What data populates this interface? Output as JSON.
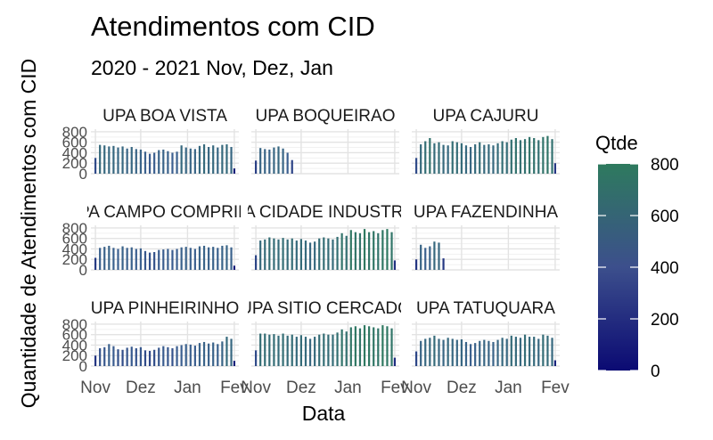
{
  "chart_data": {
    "type": "bar",
    "title": "Atendimentos com CID",
    "subtitle": "2020 - 2021 Nov, Dez, Jan",
    "xlabel": "Data",
    "ylabel": "Quantidade de Atendimentos com CID",
    "y_ticks": [
      "0",
      "200",
      "400",
      "600",
      "800"
    ],
    "ylim": [
      0,
      850
    ],
    "x_ticks": [
      "Nov",
      "Dez",
      "Jan",
      "Fev"
    ],
    "xlim": [
      "2020-10-29",
      "2021-02-04"
    ],
    "legend": {
      "title": "Qtde",
      "position": "right",
      "ticks": [
        "0",
        "200",
        "400",
        "600",
        "800"
      ],
      "range": [
        0,
        800
      ],
      "colors": {
        "low": "#0b0a73",
        "mid": "#3c6090",
        "high": "#2e7a5e"
      }
    },
    "grid": true,
    "dates": [
      "2020-11-01",
      "2020-11-04",
      "2020-11-07",
      "2020-11-10",
      "2020-11-13",
      "2020-11-16",
      "2020-11-19",
      "2020-11-22",
      "2020-11-25",
      "2020-11-28",
      "2020-12-01",
      "2020-12-04",
      "2020-12-07",
      "2020-12-10",
      "2020-12-13",
      "2020-12-16",
      "2020-12-19",
      "2020-12-22",
      "2020-12-25",
      "2020-12-28",
      "2020-12-31",
      "2021-01-03",
      "2021-01-06",
      "2021-01-09",
      "2021-01-12",
      "2021-01-15",
      "2021-01-18",
      "2021-01-21",
      "2021-01-24",
      "2021-01-27",
      "2021-01-30",
      "2021-02-01"
    ],
    "panels": [
      {
        "name": "UPA BOA VISTA",
        "values": [
          300,
          550,
          540,
          520,
          530,
          500,
          520,
          480,
          510,
          470,
          460,
          420,
          380,
          400,
          450,
          460,
          430,
          400,
          420,
          540,
          500,
          480,
          470,
          530,
          560,
          510,
          540,
          500,
          550,
          560,
          510,
          100
        ]
      },
      {
        "name": "UPA BOQUEIRAO",
        "values": [
          250,
          490,
          470,
          460,
          500,
          520,
          480,
          400,
          260
        ]
      },
      {
        "name": "UPA CAJURU",
        "values": [
          300,
          560,
          620,
          680,
          580,
          600,
          550,
          540,
          620,
          600,
          580,
          540,
          510,
          560,
          600,
          550,
          560,
          540,
          580,
          620,
          600,
          650,
          680,
          640,
          660,
          700,
          680,
          640,
          700,
          720,
          660,
          200
        ]
      },
      {
        "name": "UPA CAMPO COMPRIDO",
        "values": [
          230,
          420,
          440,
          460,
          420,
          400,
          450,
          420,
          430,
          400,
          410,
          360,
          330,
          340,
          380,
          390,
          400,
          380,
          400,
          430,
          440,
          420,
          400,
          450,
          460,
          430,
          440,
          420,
          460,
          470,
          430,
          80
        ]
      },
      {
        "name": "UPA CIDADE INDUSTRIAL",
        "values": [
          280,
          560,
          580,
          620,
          600,
          580,
          610,
          580,
          600,
          560,
          590,
          560,
          520,
          540,
          600,
          620,
          600,
          580,
          630,
          700,
          650,
          760,
          720,
          700,
          780,
          720,
          740,
          700,
          760,
          780,
          720,
          180
        ]
      },
      {
        "name": "UPA FAZENDINHA",
        "values": [
          200,
          480,
          420,
          450,
          540,
          520,
          220
        ]
      },
      {
        "name": "UPA PINHEIRINHO",
        "values": [
          200,
          340,
          360,
          420,
          380,
          320,
          310,
          350,
          370,
          340,
          360,
          300,
          290,
          310,
          350,
          380,
          360,
          340,
          380,
          400,
          420,
          410,
          390,
          440,
          460,
          430,
          450,
          420,
          470,
          560,
          520,
          100
        ]
      },
      {
        "name": "UPA SITIO CERCADO",
        "values": [
          300,
          620,
          620,
          600,
          610,
          580,
          620,
          580,
          600,
          560,
          590,
          560,
          520,
          560,
          600,
          620,
          600,
          600,
          640,
          700,
          660,
          740,
          760,
          720,
          780,
          760,
          740,
          720,
          780,
          760,
          720,
          160
        ]
      },
      {
        "name": "UPA TATUQUARA",
        "values": [
          280,
          480,
          520,
          540,
          580,
          520,
          500,
          540,
          520,
          500,
          510,
          460,
          420,
          440,
          480,
          500,
          480,
          460,
          500,
          540,
          520,
          580,
          560,
          540,
          600,
          560,
          560,
          520,
          600,
          580,
          540,
          110
        ]
      }
    ]
  }
}
